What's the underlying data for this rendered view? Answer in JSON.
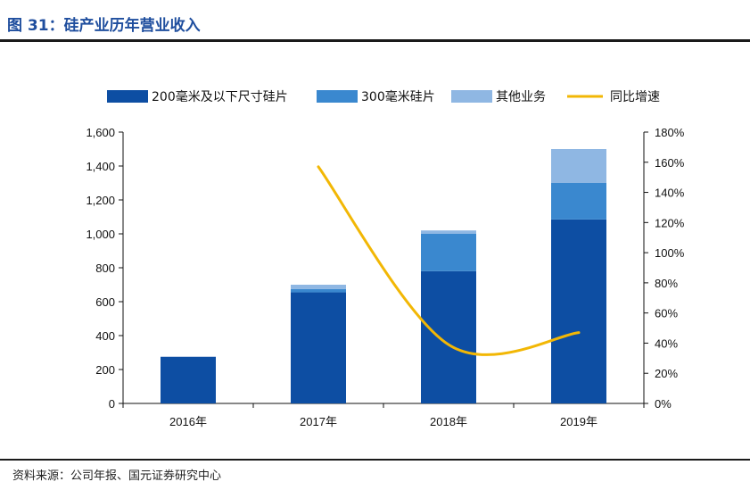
{
  "header": {
    "title": "图 31：硅产业历年营业收入"
  },
  "footer": {
    "source": "资料来源：公司年报、国元证券研究中心"
  },
  "chart_data": {
    "type": "bar",
    "stacked": true,
    "categories": [
      "2016年",
      "2017年",
      "2018年",
      "2019年"
    ],
    "series": [
      {
        "name": "200毫米及以下尺寸硅片",
        "type": "bar",
        "axis": "left",
        "color": "#0d4ea3",
        "values": [
          275,
          655,
          780,
          1085
        ]
      },
      {
        "name": "300毫米硅片",
        "type": "bar",
        "axis": "left",
        "color": "#3a88cf",
        "values": [
          0,
          20,
          220,
          215
        ]
      },
      {
        "name": "其他业务",
        "type": "bar",
        "axis": "left",
        "color": "#8fb7e3",
        "values": [
          0,
          25,
          20,
          200
        ]
      },
      {
        "name": "同比增速",
        "type": "line",
        "axis": "right",
        "color": "#f2b705",
        "values": [
          null,
          1.57,
          0.39,
          0.47
        ]
      }
    ],
    "ylim_left": [
      0,
      1600
    ],
    "yticks_left": [
      "0",
      "200",
      "400",
      "600",
      "800",
      "1,000",
      "1,200",
      "1,400",
      "1,600"
    ],
    "ylim_right": [
      0,
      1.8
    ],
    "yticks_right": [
      "0%",
      "20%",
      "40%",
      "60%",
      "80%",
      "100%",
      "120%",
      "140%",
      "160%",
      "180%"
    ],
    "legend_position": "top",
    "grid": false
  }
}
